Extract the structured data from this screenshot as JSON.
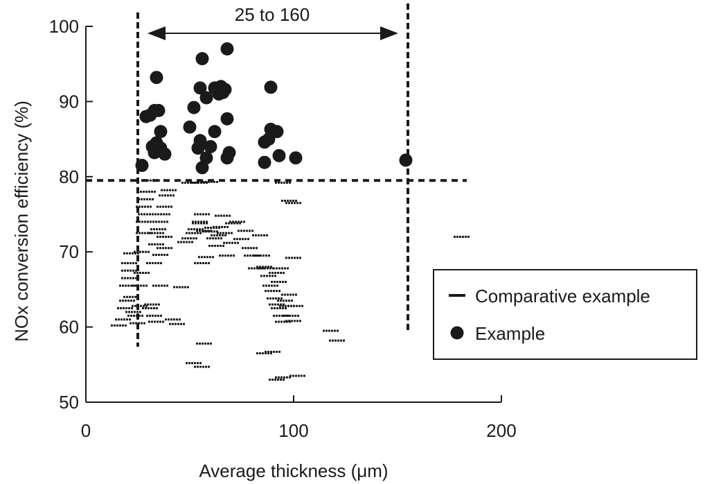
{
  "chart_data": {
    "type": "scatter",
    "title": "",
    "xlabel": "Average thickness (μm)",
    "ylabel": "NOx conversion efficiency (%)",
    "xlim": [
      0,
      200
    ],
    "ylim": [
      50,
      100
    ],
    "x_ticks": [
      "0",
      "100",
      "200"
    ],
    "y_ticks": [
      "50",
      "60",
      "70",
      "80",
      "90",
      "100"
    ],
    "grid": false,
    "legend_position": "right",
    "annotations": {
      "range_label": "25 to 160",
      "range_x": [
        25,
        155
      ],
      "vertical_lines_x": [
        25,
        155
      ],
      "horizontal_line_y": 79.5
    },
    "series": [
      {
        "name": "Comparative example",
        "marker": "dash",
        "points": [
          [
            16,
            60.2
          ],
          [
            18,
            61
          ],
          [
            19,
            62.5
          ],
          [
            20,
            63.5
          ],
          [
            20,
            65.5
          ],
          [
            21,
            66.5
          ],
          [
            21,
            67.5
          ],
          [
            21,
            68.5
          ],
          [
            22,
            69.8
          ],
          [
            22,
            64
          ],
          [
            23,
            62
          ],
          [
            24,
            61.5
          ],
          [
            25,
            60.5
          ],
          [
            26,
            62.8
          ],
          [
            26,
            65.5
          ],
          [
            27,
            67.2
          ],
          [
            27,
            70
          ],
          [
            28,
            72.5
          ],
          [
            28,
            74
          ],
          [
            29,
            75
          ],
          [
            28,
            76
          ],
          [
            29,
            77
          ],
          [
            30,
            78
          ],
          [
            31,
            62.5
          ],
          [
            32,
            63
          ],
          [
            33,
            61.5
          ],
          [
            34,
            60.7
          ],
          [
            33,
            68.5
          ],
          [
            34,
            71
          ],
          [
            34,
            72.5
          ],
          [
            35,
            73
          ],
          [
            36,
            74
          ],
          [
            37,
            75
          ],
          [
            38,
            76
          ],
          [
            39,
            77.5
          ],
          [
            40,
            78.2
          ],
          [
            36,
            69.6
          ],
          [
            38,
            70.5
          ],
          [
            38,
            72
          ],
          [
            36,
            65.5
          ],
          [
            42,
            61
          ],
          [
            44,
            60.4
          ],
          [
            46,
            65.3
          ],
          [
            48,
            71.3
          ],
          [
            50,
            71.8
          ],
          [
            52,
            72.5
          ],
          [
            53,
            73
          ],
          [
            55,
            74
          ],
          [
            56,
            75
          ],
          [
            55,
            73.8
          ],
          [
            57,
            72.8
          ],
          [
            58,
            69.3
          ],
          [
            56,
            68.5
          ],
          [
            57,
            57.8
          ],
          [
            52,
            55.2
          ],
          [
            56,
            54.7
          ],
          [
            60,
            72.7
          ],
          [
            61,
            73.2
          ],
          [
            62,
            71.8
          ],
          [
            63,
            70.8
          ],
          [
            64,
            72.2
          ],
          [
            65,
            73.3
          ],
          [
            66,
            74.8
          ],
          [
            67,
            72.5
          ],
          [
            68,
            69.5
          ],
          [
            70,
            71.2
          ],
          [
            71,
            73.8
          ],
          [
            73,
            74
          ],
          [
            75,
            71.7
          ],
          [
            77,
            72.8
          ],
          [
            79,
            70.5
          ],
          [
            80,
            69.5
          ],
          [
            82,
            67.8
          ],
          [
            84,
            72.2
          ],
          [
            85,
            69.5
          ],
          [
            86,
            68
          ],
          [
            87,
            67.8
          ],
          [
            88,
            66.8
          ],
          [
            89,
            65.5
          ],
          [
            90,
            64.8
          ],
          [
            91,
            63.8
          ],
          [
            92,
            63
          ],
          [
            93,
            62.5
          ],
          [
            94,
            61.5
          ],
          [
            95,
            60.7
          ],
          [
            96,
            63.5
          ],
          [
            97,
            62.8
          ],
          [
            98,
            64.3
          ],
          [
            99,
            61.5
          ],
          [
            100,
            60.8
          ],
          [
            101,
            62.8
          ],
          [
            100,
            69.2
          ],
          [
            93,
            66
          ],
          [
            92,
            67.2
          ],
          [
            94,
            67.8
          ],
          [
            86,
            56.5
          ],
          [
            90,
            56.7
          ],
          [
            92,
            53
          ],
          [
            95,
            53.3
          ],
          [
            102,
            53.5
          ],
          [
            95,
            79.2
          ],
          [
            98,
            76.8
          ],
          [
            100,
            76.5
          ],
          [
            118,
            59.5
          ],
          [
            121,
            58.2
          ],
          [
            181,
            72
          ],
          [
            55,
            79.2
          ],
          [
            50,
            79.2
          ],
          [
            60,
            79.3
          ],
          [
            32,
            79.5
          ]
        ]
      },
      {
        "name": "Example",
        "marker": "circle",
        "points": [
          [
            27,
            81.5
          ],
          [
            29,
            88
          ],
          [
            31,
            88.2
          ],
          [
            33,
            88.8
          ],
          [
            35,
            88.8
          ],
          [
            32,
            84
          ],
          [
            33,
            83.2
          ],
          [
            34,
            84.5
          ],
          [
            36,
            86
          ],
          [
            36,
            83.8
          ],
          [
            38,
            83
          ],
          [
            34,
            93.2
          ],
          [
            50,
            86.6
          ],
          [
            52,
            89.2
          ],
          [
            55,
            84.8
          ],
          [
            54,
            83.8
          ],
          [
            55,
            91.8
          ],
          [
            56,
            95.7
          ],
          [
            56,
            81.2
          ],
          [
            58,
            82.5
          ],
          [
            58,
            90.5
          ],
          [
            60,
            84
          ],
          [
            62,
            86
          ],
          [
            62,
            91.8
          ],
          [
            64,
            91
          ],
          [
            65,
            92
          ],
          [
            66,
            91.2
          ],
          [
            67,
            91.6
          ],
          [
            68,
            87.7
          ],
          [
            68,
            82.5
          ],
          [
            69,
            83.2
          ],
          [
            68,
            97
          ],
          [
            86,
            84.6
          ],
          [
            86,
            81.9
          ],
          [
            88,
            85
          ],
          [
            89,
            86.3
          ],
          [
            89,
            91.9
          ],
          [
            92,
            86
          ],
          [
            93,
            82.8
          ],
          [
            101,
            82.5
          ],
          [
            154,
            82.2
          ]
        ]
      }
    ]
  }
}
